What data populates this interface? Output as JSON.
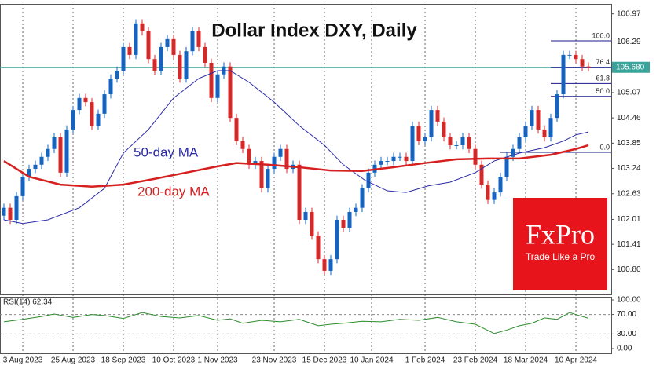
{
  "chart_data": {
    "type": "candlestick",
    "title": "Dollar Index DXY, Daily",
    "open": [
      102.1,
      102.29,
      102.0,
      102.57,
      103.04,
      103.23,
      103.33,
      103.52,
      103.71,
      103.99,
      103.14,
      104.18,
      104.65,
      104.94,
      104.84,
      104.27,
      104.56,
      105.03,
      105.41,
      105.6,
      106.17,
      105.98,
      106.74,
      106.55,
      105.88,
      105.6,
      106.17,
      106.36,
      105.98,
      105.41,
      106.07,
      106.55,
      106.17,
      105.79,
      104.94,
      105.51,
      105.7,
      104.46,
      103.9,
      103.71,
      103.33,
      103.42,
      102.76,
      103.23,
      103.52,
      103.71,
      103.23,
      103.33,
      102.0,
      102.19,
      101.62,
      101.05,
      100.77,
      101.05,
      102.0,
      101.81,
      102.19,
      102.29,
      102.76,
      103.14,
      103.33,
      103.42,
      103.42,
      103.52,
      103.52,
      103.42,
      104.27,
      103.9,
      103.99,
      104.65,
      104.37,
      103.99,
      103.8,
      103.8,
      103.99,
      103.71,
      103.33,
      102.85,
      102.48,
      102.66,
      103.04,
      103.52,
      103.71,
      103.99,
      104.27,
      104.65,
      104.18,
      103.99,
      104.46,
      105.03,
      105.98,
      105.98,
      105.88,
      105.7
    ],
    "high": [
      102.39,
      102.39,
      102.67,
      103.14,
      103.33,
      103.43,
      103.62,
      103.81,
      104.09,
      104.09,
      104.28,
      104.75,
      105.04,
      105.04,
      104.94,
      104.66,
      105.13,
      105.51,
      105.7,
      106.27,
      106.27,
      106.84,
      106.84,
      106.65,
      105.98,
      106.27,
      106.46,
      106.46,
      106.08,
      106.17,
      106.65,
      106.65,
      106.27,
      105.89,
      105.61,
      105.8,
      105.8,
      104.56,
      104.0,
      103.81,
      103.52,
      103.52,
      103.33,
      103.62,
      103.81,
      103.81,
      103.43,
      103.43,
      102.29,
      102.29,
      101.72,
      101.15,
      101.15,
      102.1,
      102.1,
      102.29,
      102.39,
      102.86,
      103.24,
      103.43,
      103.52,
      103.52,
      103.62,
      103.62,
      103.62,
      104.37,
      104.37,
      104.09,
      104.75,
      104.75,
      104.47,
      104.09,
      103.9,
      104.09,
      104.09,
      103.81,
      103.43,
      102.95,
      102.76,
      103.14,
      103.62,
      103.81,
      104.09,
      104.37,
      104.75,
      104.75,
      104.28,
      104.56,
      105.13,
      106.08,
      106.08,
      106.08,
      105.98,
      105.8
    ],
    "low": [
      102.0,
      101.9,
      101.9,
      102.47,
      102.94,
      103.13,
      103.23,
      103.42,
      103.61,
      103.04,
      103.04,
      104.08,
      104.55,
      104.74,
      104.17,
      104.17,
      104.46,
      104.93,
      105.31,
      105.5,
      105.88,
      105.88,
      106.45,
      105.78,
      105.5,
      105.5,
      106.07,
      105.88,
      105.31,
      105.31,
      105.97,
      106.07,
      105.69,
      104.84,
      104.84,
      105.41,
      104.36,
      103.8,
      103.61,
      103.23,
      103.23,
      102.66,
      102.66,
      103.13,
      103.42,
      103.13,
      103.13,
      101.9,
      101.9,
      101.52,
      100.95,
      100.67,
      100.67,
      100.95,
      101.71,
      101.71,
      102.09,
      102.19,
      102.66,
      103.04,
      103.23,
      103.32,
      103.32,
      103.42,
      103.32,
      103.32,
      103.8,
      103.8,
      103.89,
      104.27,
      103.89,
      103.7,
      103.7,
      103.7,
      103.61,
      103.23,
      102.75,
      102.38,
      102.38,
      102.56,
      102.94,
      103.42,
      103.61,
      103.89,
      104.17,
      104.08,
      103.89,
      103.89,
      104.36,
      104.93,
      105.88,
      105.78,
      105.6,
      105.58
    ],
    "close": [
      102.29,
      102.0,
      102.57,
      103.04,
      103.23,
      103.33,
      103.52,
      103.71,
      103.99,
      103.14,
      104.18,
      104.65,
      104.94,
      104.84,
      104.27,
      104.56,
      105.03,
      105.41,
      105.6,
      106.17,
      105.98,
      106.74,
      106.55,
      105.88,
      105.6,
      106.17,
      106.36,
      105.98,
      105.41,
      106.07,
      106.55,
      106.17,
      105.79,
      104.94,
      105.51,
      105.7,
      104.46,
      103.9,
      103.71,
      103.33,
      103.42,
      102.76,
      103.23,
      103.52,
      103.71,
      103.23,
      103.33,
      102.0,
      102.19,
      101.62,
      101.05,
      100.77,
      101.05,
      102.0,
      101.81,
      102.19,
      102.29,
      102.76,
      103.14,
      103.33,
      103.42,
      103.42,
      103.52,
      103.52,
      103.42,
      104.27,
      103.9,
      103.99,
      104.65,
      104.37,
      103.99,
      103.8,
      103.8,
      103.99,
      103.71,
      103.33,
      102.85,
      102.48,
      102.66,
      103.04,
      103.52,
      103.71,
      103.99,
      104.27,
      104.65,
      104.18,
      103.99,
      104.46,
      105.03,
      105.98,
      105.98,
      105.88,
      105.7,
      105.68
    ],
    "up_color": "#1565c0",
    "down_color": "#d62828",
    "ylim": [
      100.2,
      107.21
    ],
    "yticks": [
      {
        "value": 100.8,
        "label": "100.80"
      },
      101.41,
      102.01,
      102.63,
      103.24,
      103.85,
      104.46,
      105.07,
      106.29,
      106.97
    ],
    "xticks": [
      {
        "value": 3,
        "label": "3 Aug 2023"
      },
      {
        "value": 11,
        "label": "25 Aug 2023"
      },
      {
        "value": 19,
        "label": "18 Sep 2023"
      },
      {
        "value": 27,
        "label": "10 Oct 2023"
      },
      {
        "value": 34,
        "label": "1 Nov 2023"
      },
      {
        "value": 43,
        "label": "23 Nov 2023"
      },
      {
        "value": 51,
        "label": "15 Dec 2023"
      },
      {
        "value": 58.5,
        "label": "10 Jan 2024"
      },
      {
        "value": 67,
        "label": "1 Feb 2024"
      },
      {
        "value": 75,
        "label": "23 Feb 2024"
      },
      {
        "value": 83,
        "label": "18 Mar 2024"
      },
      {
        "value": 91,
        "label": "10 Apr 2024"
      }
    ],
    "ma": [
      {
        "name": "50-day MA",
        "color": "#2a2aa8",
        "x": [
          0,
          3,
          7,
          12,
          16,
          19,
          23,
          27,
          31,
          34,
          36,
          39,
          43,
          47,
          51,
          54,
          57.5,
          61,
          64,
          67.5,
          71,
          75,
          78,
          82,
          86,
          89,
          91,
          93
        ],
        "values": [
          102.0,
          101.91,
          102.0,
          102.29,
          102.76,
          103.61,
          104.18,
          104.94,
          105.41,
          105.6,
          105.6,
          105.32,
          104.84,
          104.27,
          103.8,
          103.33,
          102.95,
          102.7,
          102.66,
          102.82,
          102.91,
          103.14,
          103.42,
          103.61,
          103.74,
          103.9,
          104.05,
          104.12
        ]
      },
      {
        "name": "200-day MA",
        "color": "#d62020",
        "x": [
          0,
          4,
          9,
          14,
          19,
          24,
          29,
          34,
          37,
          42,
          47,
          52,
          57,
          62,
          67,
          72,
          77,
          82,
          87,
          91,
          93
        ],
        "values": [
          103.42,
          103.04,
          102.85,
          102.8,
          102.85,
          102.99,
          103.14,
          103.29,
          103.37,
          103.33,
          103.27,
          103.19,
          103.18,
          103.27,
          103.37,
          103.46,
          103.48,
          103.48,
          103.57,
          103.71,
          103.8
        ]
      }
    ],
    "last_price": {
      "value": 105.68,
      "label": "105.680",
      "color": "#3aa39a"
    },
    "fib": [
      {
        "level": "100.0",
        "price": 106.32
      },
      {
        "level": "76.4",
        "price": 105.68
      },
      {
        "level": "61.8",
        "price": 105.29
      },
      {
        "level": "50.0",
        "price": 104.98
      },
      {
        "level": "0.0",
        "price": 103.63
      }
    ],
    "rsi": {
      "label": "RSI(14) 62.34",
      "color": "#2e8b2e",
      "x": [
        0,
        3,
        6,
        8,
        11,
        14,
        16,
        19,
        22,
        25,
        28,
        31,
        34,
        36,
        38,
        41,
        44,
        47,
        50,
        52,
        54,
        57,
        60,
        63,
        66,
        69,
        72,
        75,
        78,
        80,
        82,
        84,
        86,
        88,
        90,
        92,
        93
      ],
      "values": [
        55,
        60,
        66,
        71,
        64,
        70,
        68,
        62,
        74,
        66,
        63,
        68,
        58,
        61,
        52,
        58,
        55,
        60,
        47,
        50,
        52,
        56,
        55,
        60,
        58,
        64,
        55,
        50,
        31,
        38,
        47,
        52,
        63,
        60,
        74,
        66,
        62.34
      ],
      "ylim": [
        0,
        100
      ],
      "yticks": [
        {
          "value": 0,
          "label": "0.00"
        },
        {
          "value": 30,
          "label": "30.00"
        },
        {
          "value": 70,
          "label": "70.00"
        },
        {
          "value": 100,
          "label": "100.00"
        }
      ]
    },
    "brand": {
      "name": "FxPro",
      "tagline": "Trade Like a Pro",
      "color": "#e8141b"
    }
  }
}
